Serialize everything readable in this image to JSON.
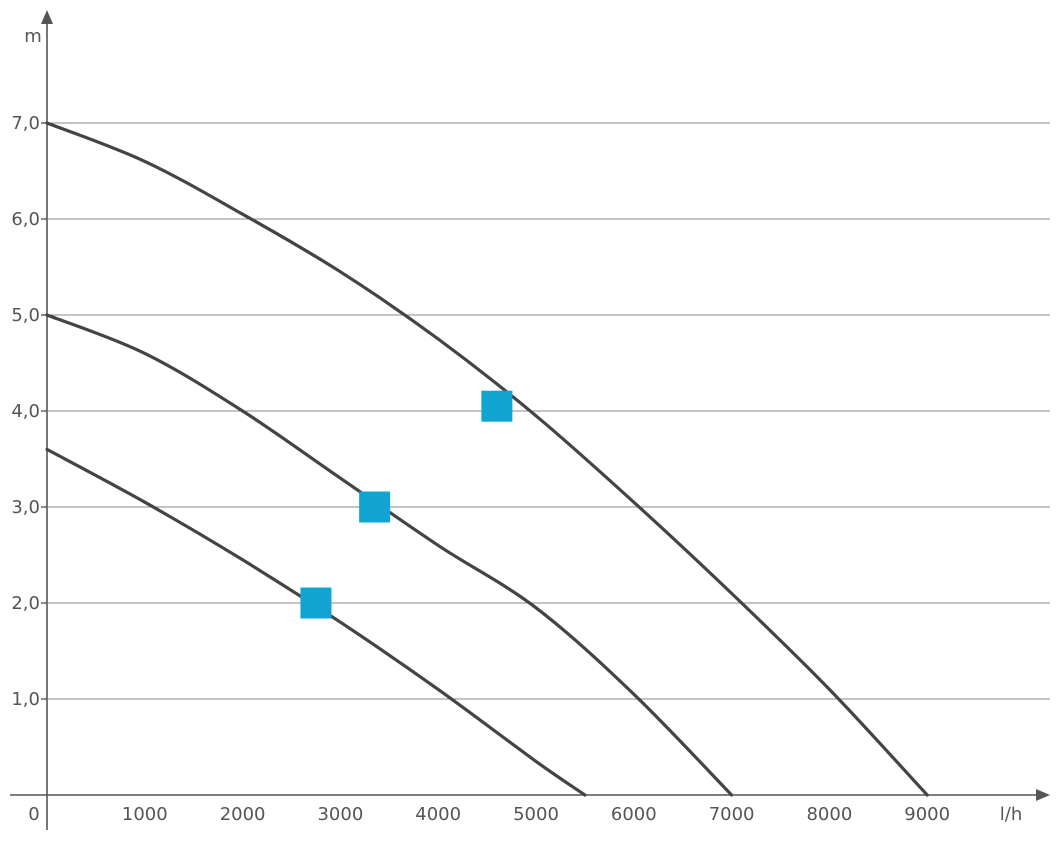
{
  "chart_data": {
    "type": "line",
    "xlabel": "l/h",
    "ylabel": "m",
    "origin_label": "0",
    "xlim": [
      0,
      10000
    ],
    "ylim": [
      0,
      8
    ],
    "x_ticks": [
      {
        "value": 1000,
        "label": "1000"
      },
      {
        "value": 2000,
        "label": "2000"
      },
      {
        "value": 3000,
        "label": "3000"
      },
      {
        "value": 4000,
        "label": "4000"
      },
      {
        "value": 5000,
        "label": "5000"
      },
      {
        "value": 6000,
        "label": "6000"
      },
      {
        "value": 7000,
        "label": "7000"
      },
      {
        "value": 8000,
        "label": "8000"
      },
      {
        "value": 9000,
        "label": "9000"
      }
    ],
    "y_ticks": [
      {
        "value": 1,
        "label": "1,0"
      },
      {
        "value": 2,
        "label": "2,0"
      },
      {
        "value": 3,
        "label": "3,0"
      },
      {
        "value": 4,
        "label": "4,0"
      },
      {
        "value": 5,
        "label": "5,0"
      },
      {
        "value": 6,
        "label": "6,0"
      },
      {
        "value": 7,
        "label": "7,0"
      }
    ],
    "grid": "horizontal",
    "colors": {
      "curve": "#444444",
      "marker": "#12a4d0",
      "grid": "#888888",
      "axis": "#555555"
    },
    "series": [
      {
        "x": [
          0,
          1000,
          2000,
          3000,
          4000,
          5000,
          5500
        ],
        "y": [
          3.6,
          3.05,
          2.45,
          1.8,
          1.1,
          0.35,
          0
        ]
      },
      {
        "x": [
          0,
          1000,
          2000,
          3000,
          4000,
          5000,
          6000,
          7000
        ],
        "y": [
          5.0,
          4.6,
          4.0,
          3.3,
          2.6,
          1.95,
          1.05,
          0
        ]
      },
      {
        "x": [
          0,
          1000,
          2000,
          3000,
          4000,
          5000,
          6000,
          7000,
          8000,
          9000
        ],
        "y": [
          7.0,
          6.6,
          6.05,
          5.45,
          4.75,
          3.95,
          3.05,
          2.1,
          1.1,
          0
        ]
      }
    ],
    "markers": [
      {
        "x": 2750,
        "y": 2.0
      },
      {
        "x": 3350,
        "y": 3.0
      },
      {
        "x": 4600,
        "y": 4.05
      }
    ]
  }
}
